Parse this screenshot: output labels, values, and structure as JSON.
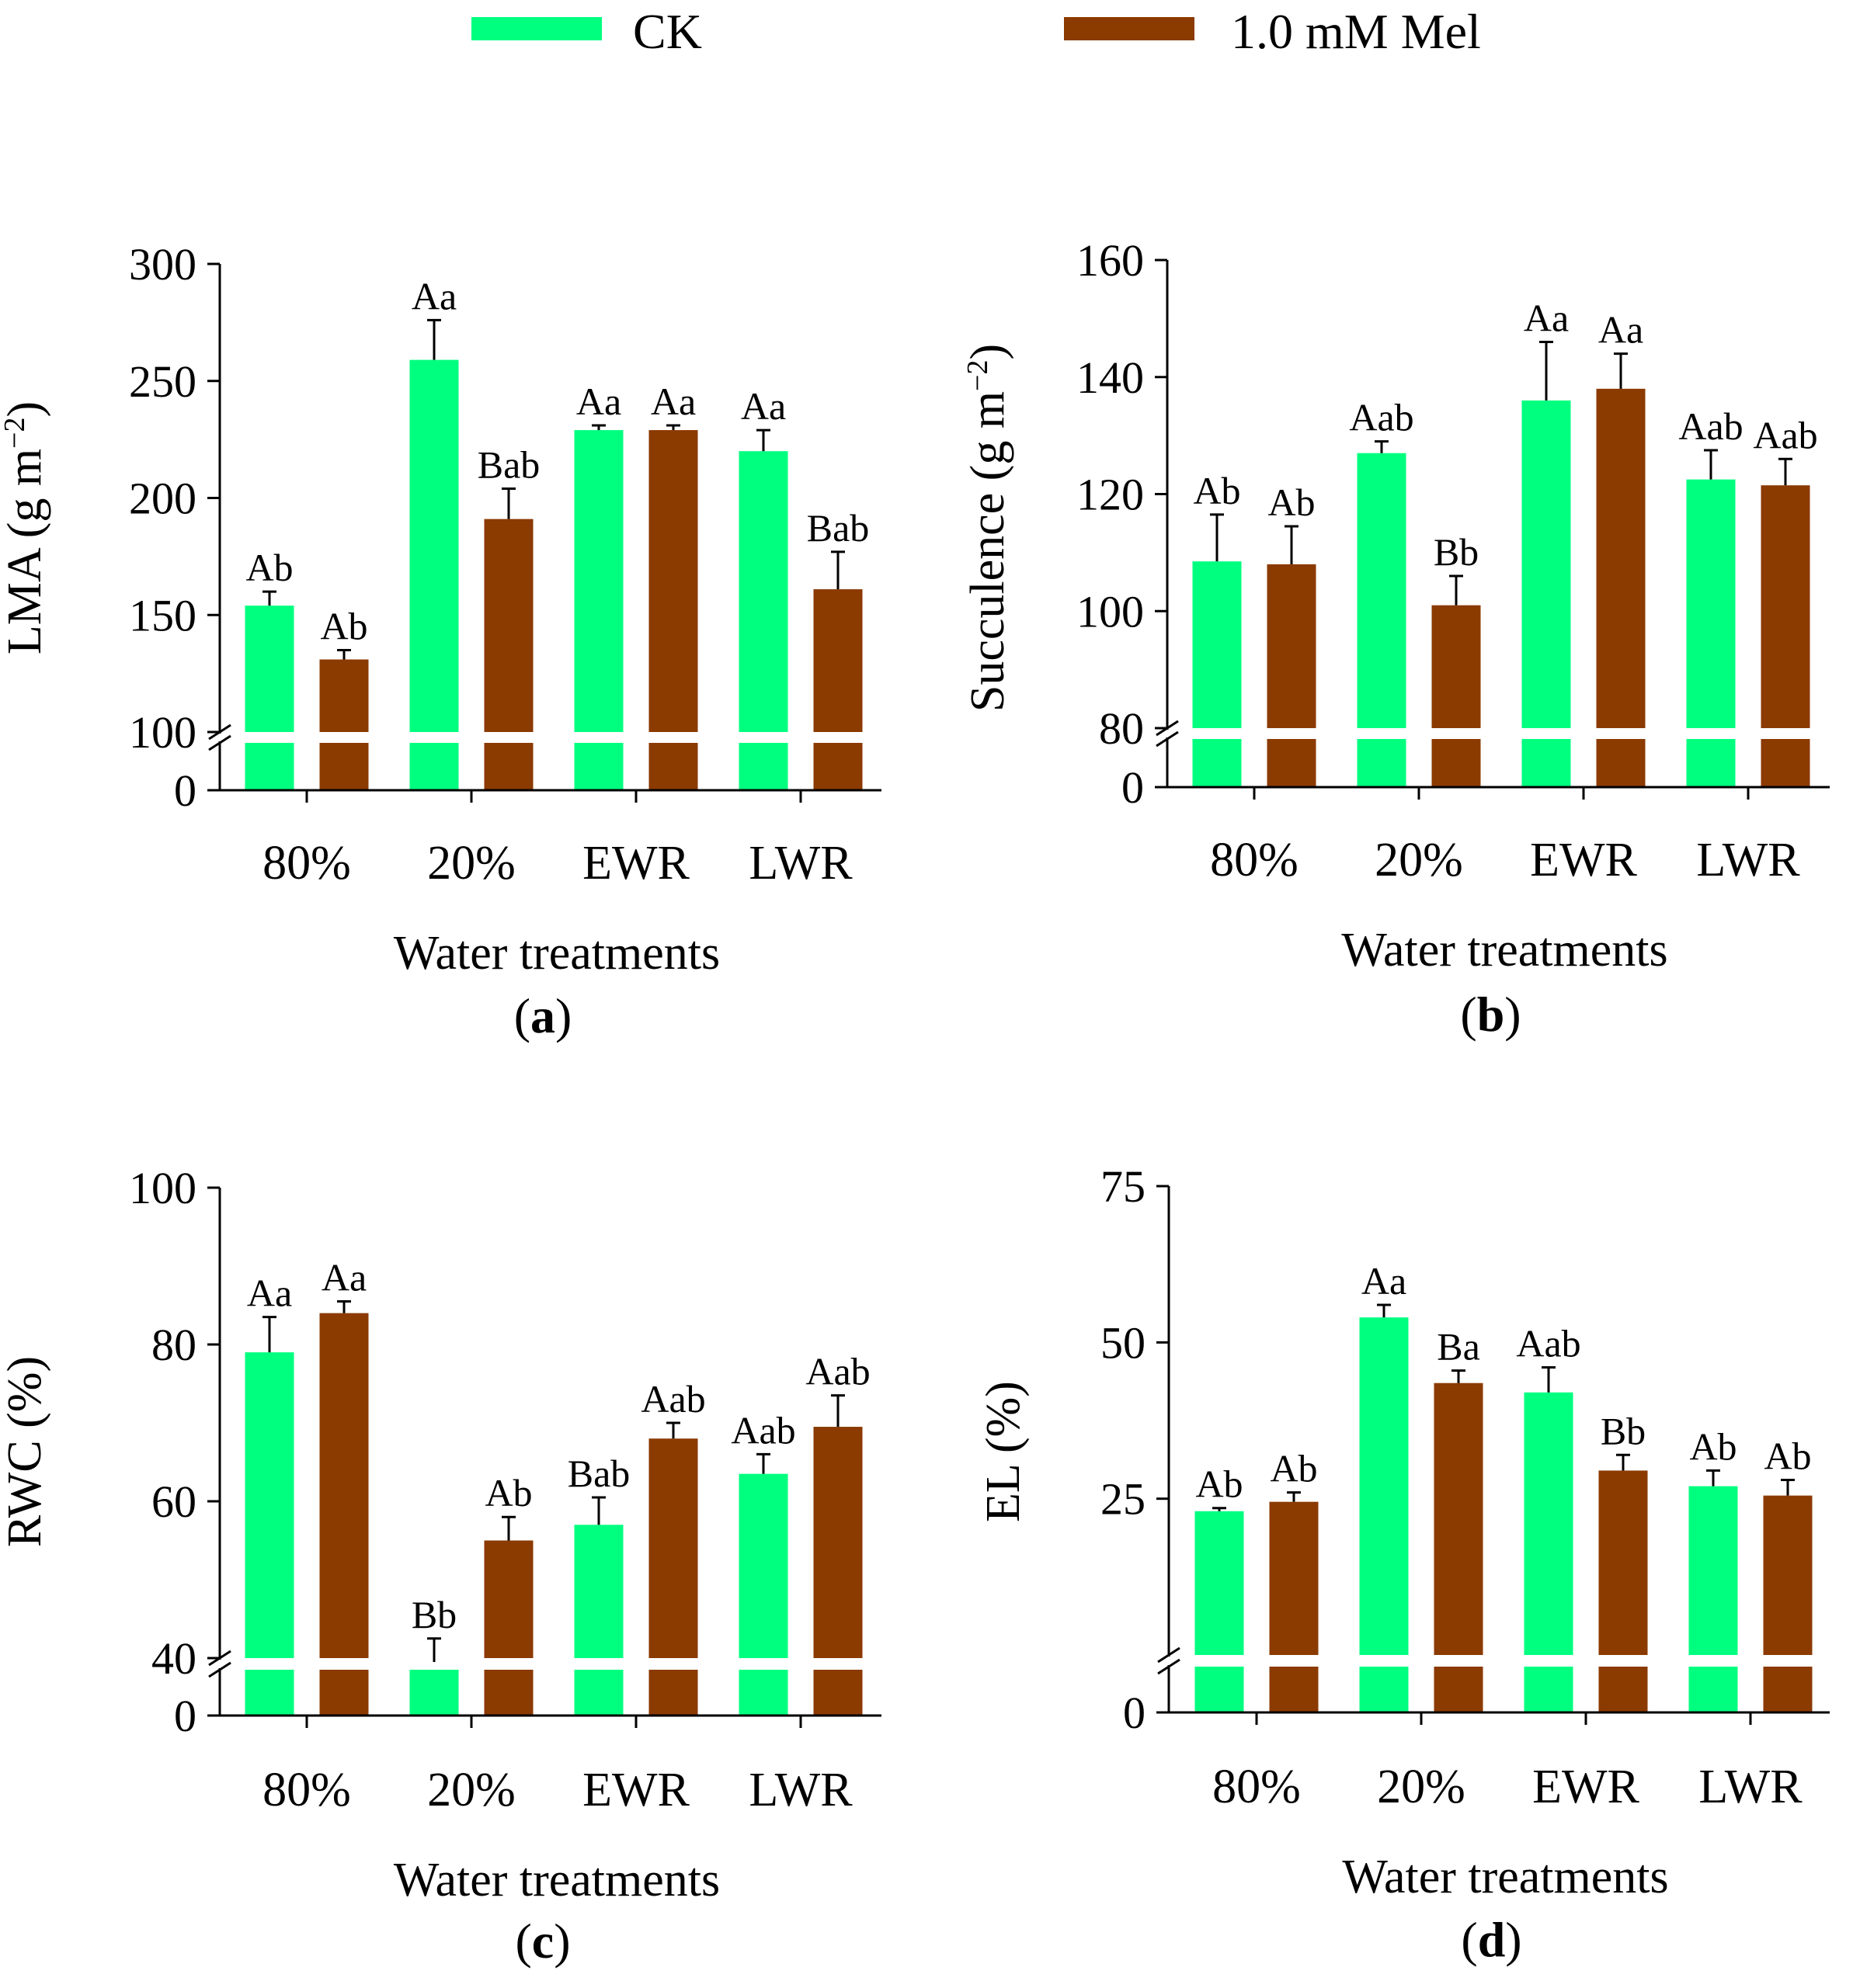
{
  "legend": {
    "items": [
      {
        "label": "CK",
        "color": "#00ff7f"
      },
      {
        "label": "1.0 mM Mel",
        "color": "#8b3a00"
      }
    ]
  },
  "colors": {
    "ck": "#00ff7f",
    "mel": "#8b3a00",
    "axis": "#000000"
  },
  "chart_data": [
    {
      "type": "bar",
      "panel": "(a)",
      "panel_letter": "a",
      "categories": [
        "80%",
        "20%",
        "EWR",
        "LWR"
      ],
      "xlabel": "Water treatments",
      "ylabel": "LMA (g m",
      "ylabel_sup": "−2",
      "ylabel_close": ")",
      "ylim": [
        100,
        300
      ],
      "broken_axis_zero": "0",
      "yticks": [
        100,
        150,
        200,
        250,
        300
      ],
      "ytick_labels": [
        "100",
        "150",
        "200",
        "250",
        "300"
      ],
      "series": [
        {
          "name": "CK",
          "values": [
            154,
            259,
            229,
            220
          ],
          "errors": [
            6,
            17,
            2,
            9
          ],
          "sig": [
            "Ab",
            "Aa",
            "Aa",
            "Aa"
          ]
        },
        {
          "name": "1.0 mM Mel",
          "values": [
            131,
            191,
            229,
            161
          ],
          "errors": [
            4,
            13,
            2,
            16
          ],
          "sig": [
            "Ab",
            "Bab",
            "Aa",
            "Bab"
          ]
        }
      ]
    },
    {
      "type": "bar",
      "panel": "(b)",
      "panel_letter": "b",
      "categories": [
        "80%",
        "20%",
        "EWR",
        "LWR"
      ],
      "xlabel": "Water treatments",
      "ylabel": "Succulence (g m",
      "ylabel_sup": "−2",
      "ylabel_close": ")",
      "ylim": [
        80,
        160
      ],
      "broken_axis_zero": "0",
      "yticks": [
        80,
        100,
        120,
        140,
        160
      ],
      "ytick_labels": [
        "80",
        "100",
        "120",
        "140",
        "160"
      ],
      "series": [
        {
          "name": "CK",
          "values": [
            108.5,
            127,
            136,
            122.5
          ],
          "errors": [
            8,
            2,
            10,
            5
          ],
          "sig": [
            "Ab",
            "Aab",
            "Aa",
            "Aab"
          ]
        },
        {
          "name": "1.0 mM Mel",
          "values": [
            108,
            101,
            138,
            121.5
          ],
          "errors": [
            6.5,
            5,
            6,
            4.5
          ],
          "sig": [
            "Ab",
            "Bb",
            "Aa",
            "Aab"
          ]
        }
      ]
    },
    {
      "type": "bar",
      "panel": "(c)",
      "panel_letter": "c",
      "categories": [
        "80%",
        "20%",
        "EWR",
        "LWR"
      ],
      "xlabel": "Water treatments",
      "ylabel": "RWC (%)",
      "ylabel_sup": "",
      "ylabel_close": "",
      "ylim": [
        40,
        100
      ],
      "broken_axis_zero": "0",
      "yticks": [
        40,
        60,
        80,
        100
      ],
      "ytick_labels": [
        "40",
        "60",
        "80",
        "100"
      ],
      "series": [
        {
          "name": "CK",
          "values": [
            79,
            39.5,
            57,
            63.5
          ],
          "errors": [
            4.5,
            3,
            3.5,
            2.5
          ],
          "sig": [
            "Aa",
            "Bb",
            "Bab",
            "Aab"
          ]
        },
        {
          "name": "1.0 mM Mel",
          "values": [
            84,
            55,
            68,
            69.5
          ],
          "errors": [
            1.5,
            3,
            2,
            4
          ],
          "sig": [
            "Aa",
            "Ab",
            "Aab",
            "Aab"
          ]
        }
      ]
    },
    {
      "type": "bar",
      "panel": "(d)",
      "panel_letter": "d",
      "categories": [
        "80%",
        "20%",
        "EWR",
        "LWR"
      ],
      "xlabel": "Water treatments",
      "ylabel": "EL (%)",
      "ylabel_sup": "",
      "ylabel_close": "",
      "ylim": [
        0,
        75
      ],
      "broken_axis_zero": "0",
      "yticks": [
        25,
        50,
        75
      ],
      "ytick_labels": [
        "25",
        "50",
        "75"
      ],
      "series": [
        {
          "name": "CK",
          "values": [
            23,
            54,
            42,
            27
          ],
          "errors": [
            0.5,
            2,
            4,
            2.5
          ],
          "sig": [
            "Ab",
            "Aa",
            "Aab",
            "Ab"
          ]
        },
        {
          "name": "1.0 mM Mel",
          "values": [
            24.5,
            43.5,
            29.5,
            25.5
          ],
          "errors": [
            1.5,
            2,
            2.5,
            2.5
          ],
          "sig": [
            "Ab",
            "Ba",
            "Bb",
            "Ab"
          ]
        }
      ]
    }
  ]
}
